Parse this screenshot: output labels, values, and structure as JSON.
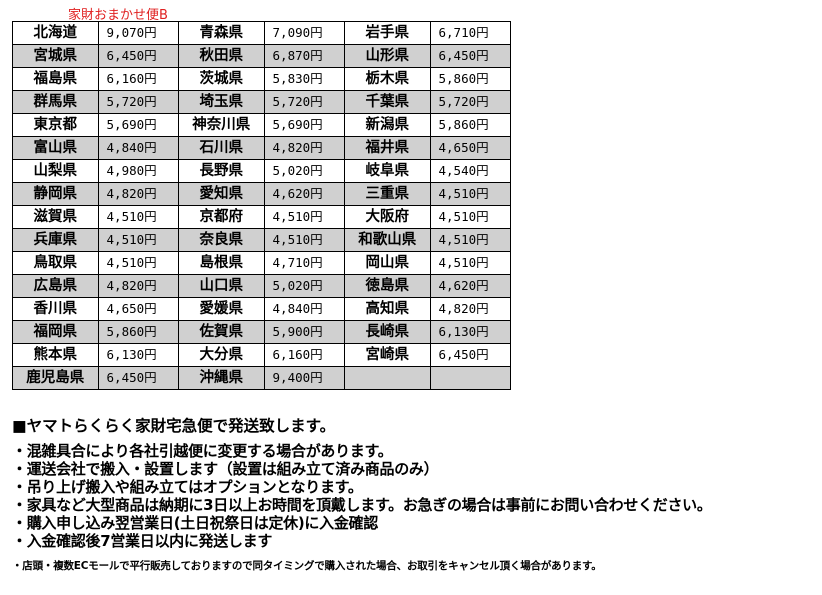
{
  "caption": "家財おまかせ便B",
  "rows": [
    [
      [
        "北海道",
        "9,070円"
      ],
      [
        "青森県",
        "7,090円"
      ],
      [
        "岩手県",
        "6,710円"
      ]
    ],
    [
      [
        "宮城県",
        "6,450円"
      ],
      [
        "秋田県",
        "6,870円"
      ],
      [
        "山形県",
        "6,450円"
      ]
    ],
    [
      [
        "福島県",
        "6,160円"
      ],
      [
        "茨城県",
        "5,830円"
      ],
      [
        "栃木県",
        "5,860円"
      ]
    ],
    [
      [
        "群馬県",
        "5,720円"
      ],
      [
        "埼玉県",
        "5,720円"
      ],
      [
        "千葉県",
        "5,720円"
      ]
    ],
    [
      [
        "東京都",
        "5,690円"
      ],
      [
        "神奈川県",
        "5,690円"
      ],
      [
        "新潟県",
        "5,860円"
      ]
    ],
    [
      [
        "富山県",
        "4,840円"
      ],
      [
        "石川県",
        "4,820円"
      ],
      [
        "福井県",
        "4,650円"
      ]
    ],
    [
      [
        "山梨県",
        "4,980円"
      ],
      [
        "長野県",
        "5,020円"
      ],
      [
        "岐阜県",
        "4,540円"
      ]
    ],
    [
      [
        "静岡県",
        "4,820円"
      ],
      [
        "愛知県",
        "4,620円"
      ],
      [
        "三重県",
        "4,510円"
      ]
    ],
    [
      [
        "滋賀県",
        "4,510円"
      ],
      [
        "京都府",
        "4,510円"
      ],
      [
        "大阪府",
        "4,510円"
      ]
    ],
    [
      [
        "兵庫県",
        "4,510円"
      ],
      [
        "奈良県",
        "4,510円"
      ],
      [
        "和歌山県",
        "4,510円"
      ]
    ],
    [
      [
        "鳥取県",
        "4,510円"
      ],
      [
        "島根県",
        "4,710円"
      ],
      [
        "岡山県",
        "4,510円"
      ]
    ],
    [
      [
        "広島県",
        "4,820円"
      ],
      [
        "山口県",
        "5,020円"
      ],
      [
        "徳島県",
        "4,620円"
      ]
    ],
    [
      [
        "香川県",
        "4,650円"
      ],
      [
        "愛媛県",
        "4,840円"
      ],
      [
        "高知県",
        "4,820円"
      ]
    ],
    [
      [
        "福岡県",
        "5,860円"
      ],
      [
        "佐賀県",
        "5,900円"
      ],
      [
        "長崎県",
        "6,130円"
      ]
    ],
    [
      [
        "熊本県",
        "6,130円"
      ],
      [
        "大分県",
        "6,160円"
      ],
      [
        "宮崎県",
        "6,450円"
      ]
    ],
    [
      [
        "鹿児島県",
        "6,450円"
      ],
      [
        "沖縄県",
        "9,400円"
      ],
      [
        "",
        ""
      ]
    ]
  ],
  "notes": {
    "heading": "■ヤマトらくらく家財宅急便で発送致します。",
    "lines": [
      "・混雑具合により各社引越便に変更する場合があります。",
      "・運送会社で搬入・設置します（設置は組み立て済み商品のみ）",
      "・吊り上げ搬入や組み立てはオプションとなります。",
      "・家具など大型商品は納期に3日以上お時間を頂戴します。お急ぎの場合は事前にお問い合わせください。",
      "・購入申し込み翌営業日(土日祝祭日は定休)に入金確認",
      "・入金確認後7営業日以内に発送します"
    ],
    "small": "・店頭・複数ECモールで平行販売しておりますので同タイミングで購入された場合、お取引をキャンセル頂く場合があります。"
  }
}
